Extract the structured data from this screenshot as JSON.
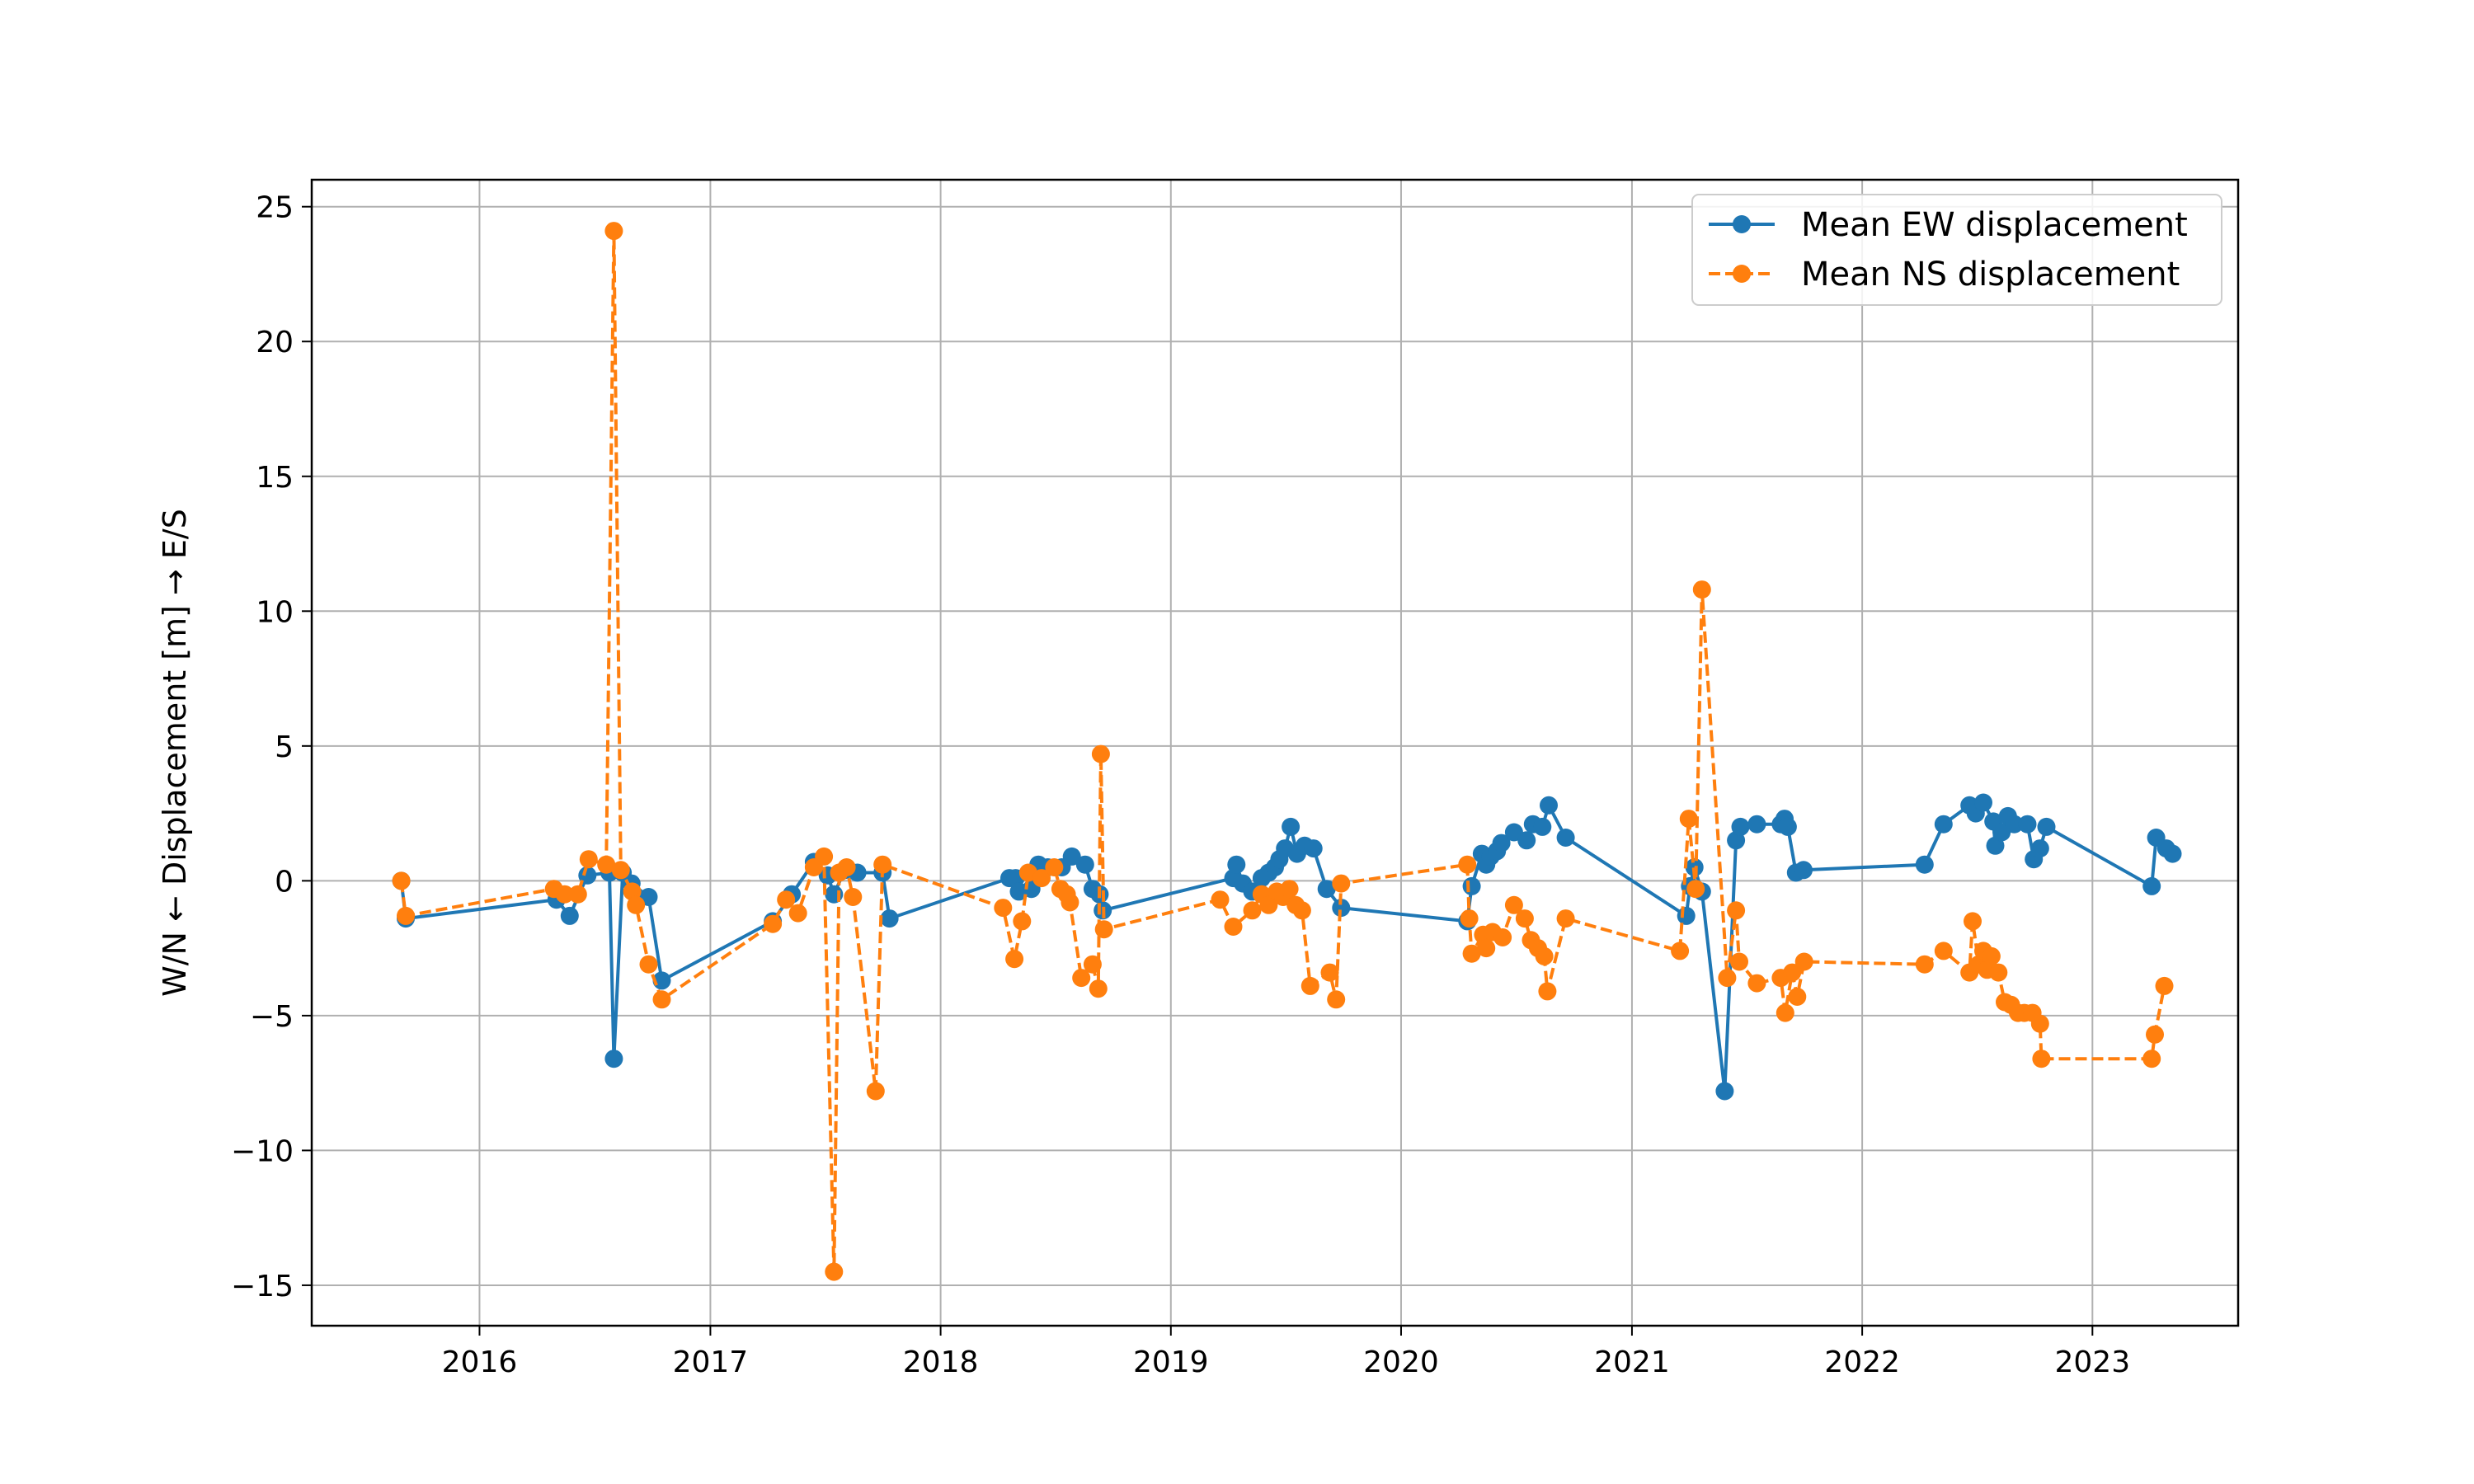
{
  "chart_data": {
    "type": "line",
    "title": "",
    "xlabel": "",
    "ylabel": "W/N ← Displacement [m] → E/S",
    "x_axis": "date",
    "xlim": [
      "2015-04-10",
      "2023-08-20"
    ],
    "ylim": [
      -16.5,
      26.0
    ],
    "xticks": [
      {
        "date": "2016-01-01",
        "label": "2016"
      },
      {
        "date": "2017-01-01",
        "label": "2017"
      },
      {
        "date": "2018-01-01",
        "label": "2018"
      },
      {
        "date": "2019-01-01",
        "label": "2019"
      },
      {
        "date": "2020-01-01",
        "label": "2020"
      },
      {
        "date": "2021-01-01",
        "label": "2021"
      },
      {
        "date": "2022-01-01",
        "label": "2022"
      },
      {
        "date": "2023-01-01",
        "label": "2023"
      }
    ],
    "yticks": [
      {
        "value": 25,
        "label": "25"
      },
      {
        "value": 20,
        "label": "20"
      },
      {
        "value": 15,
        "label": "15"
      },
      {
        "value": 10,
        "label": "10"
      },
      {
        "value": 5,
        "label": "5"
      },
      {
        "value": 0,
        "label": "0"
      },
      {
        "value": -5,
        "label": "−5"
      },
      {
        "value": -10,
        "label": "−10"
      },
      {
        "value": -15,
        "label": "−15"
      }
    ],
    "grid": true,
    "legend": "top-right",
    "series": [
      {
        "name": "Mean EW displacement",
        "color": "#1f77b4",
        "linestyle": "solid",
        "marker": "circle",
        "points": [
          [
            "2015-08-30",
            0.0
          ],
          [
            "2015-09-06",
            -1.4
          ],
          [
            "2016-05-02",
            -0.7
          ],
          [
            "2016-05-23",
            -1.3
          ],
          [
            "2016-06-20",
            0.2
          ],
          [
            "2016-07-25",
            0.3
          ],
          [
            "2016-08-01",
            -6.6
          ],
          [
            "2016-08-15",
            0.3
          ],
          [
            "2016-08-29",
            -0.1
          ],
          [
            "2016-09-25",
            -0.6
          ],
          [
            "2016-10-16",
            -3.7
          ],
          [
            "2017-04-10",
            -1.5
          ],
          [
            "2017-05-10",
            -0.5
          ],
          [
            "2017-06-14",
            0.7
          ],
          [
            "2017-07-06",
            0.2
          ],
          [
            "2017-07-16",
            -0.5
          ],
          [
            "2017-08-02",
            0.4
          ],
          [
            "2017-08-22",
            0.3
          ],
          [
            "2017-10-01",
            0.3
          ],
          [
            "2017-10-12",
            -1.4
          ],
          [
            "2018-04-20",
            0.1
          ],
          [
            "2018-04-30",
            0.1
          ],
          [
            "2018-05-05",
            -0.4
          ],
          [
            "2018-05-25",
            -0.3
          ],
          [
            "2018-06-05",
            0.6
          ],
          [
            "2018-06-20",
            0.5
          ],
          [
            "2018-07-12",
            0.5
          ],
          [
            "2018-07-28",
            0.9
          ],
          [
            "2018-08-18",
            0.6
          ],
          [
            "2018-08-30",
            -0.3
          ],
          [
            "2018-09-10",
            -0.5
          ],
          [
            "2018-09-15",
            -1.1
          ],
          [
            "2019-04-10",
            0.1
          ],
          [
            "2019-04-15",
            0.6
          ],
          [
            "2019-04-25",
            -0.1
          ],
          [
            "2019-05-10",
            -0.4
          ],
          [
            "2019-05-25",
            0.1
          ],
          [
            "2019-06-05",
            0.3
          ],
          [
            "2019-06-15",
            0.5
          ],
          [
            "2019-06-22",
            0.8
          ],
          [
            "2019-07-01",
            1.2
          ],
          [
            "2019-07-10",
            2.0
          ],
          [
            "2019-07-20",
            1.0
          ],
          [
            "2019-08-01",
            1.3
          ],
          [
            "2019-08-15",
            1.2
          ],
          [
            "2019-09-05",
            -0.3
          ],
          [
            "2019-09-28",
            -1.0
          ],
          [
            "2020-04-15",
            -1.5
          ],
          [
            "2020-04-22",
            -0.2
          ],
          [
            "2020-05-08",
            1.0
          ],
          [
            "2020-05-15",
            0.6
          ],
          [
            "2020-05-22",
            0.9
          ],
          [
            "2020-06-01",
            1.1
          ],
          [
            "2020-06-08",
            1.4
          ],
          [
            "2020-06-28",
            1.8
          ],
          [
            "2020-07-18",
            1.5
          ],
          [
            "2020-07-28",
            2.1
          ],
          [
            "2020-08-12",
            2.0
          ],
          [
            "2020-08-22",
            2.8
          ],
          [
            "2020-09-18",
            1.6
          ],
          [
            "2021-03-28",
            -1.3
          ],
          [
            "2021-04-03",
            -0.2
          ],
          [
            "2021-04-10",
            0.5
          ],
          [
            "2021-04-22",
            -0.4
          ],
          [
            "2021-05-28",
            -7.8
          ],
          [
            "2021-06-15",
            1.5
          ],
          [
            "2021-06-22",
            2.0
          ],
          [
            "2021-07-18",
            2.1
          ],
          [
            "2021-08-25",
            2.1
          ],
          [
            "2021-08-31",
            2.3
          ],
          [
            "2021-09-05",
            2.0
          ],
          [
            "2021-09-18",
            0.3
          ],
          [
            "2021-09-30",
            0.4
          ],
          [
            "2022-04-10",
            0.6
          ],
          [
            "2022-05-10",
            2.1
          ],
          [
            "2022-06-20",
            2.8
          ],
          [
            "2022-06-30",
            2.5
          ],
          [
            "2022-07-12",
            2.9
          ],
          [
            "2022-07-28",
            2.2
          ],
          [
            "2022-07-31",
            1.3
          ],
          [
            "2022-08-10",
            1.8
          ],
          [
            "2022-08-20",
            2.4
          ],
          [
            "2022-08-30",
            2.1
          ],
          [
            "2022-09-20",
            2.1
          ],
          [
            "2022-09-30",
            0.8
          ],
          [
            "2022-10-10",
            1.2
          ],
          [
            "2022-10-20",
            2.0
          ],
          [
            "2023-04-05",
            -0.2
          ],
          [
            "2023-04-12",
            1.6
          ],
          [
            "2023-04-28",
            1.2
          ],
          [
            "2023-05-08",
            1.0
          ]
        ]
      },
      {
        "name": "Mean NS displacement",
        "color": "#ff7f0e",
        "linestyle": "dashed",
        "marker": "circle",
        "points": [
          [
            "2015-08-30",
            0.0
          ],
          [
            "2015-09-06",
            -1.3
          ],
          [
            "2016-04-28",
            -0.3
          ],
          [
            "2016-05-15",
            -0.5
          ],
          [
            "2016-06-05",
            -0.5
          ],
          [
            "2016-06-22",
            0.8
          ],
          [
            "2016-07-20",
            0.6
          ],
          [
            "2016-08-01",
            24.1
          ],
          [
            "2016-08-12",
            0.4
          ],
          [
            "2016-08-30",
            -0.4
          ],
          [
            "2016-09-05",
            -0.9
          ],
          [
            "2016-09-25",
            -3.1
          ],
          [
            "2016-10-16",
            -4.4
          ],
          [
            "2017-04-10",
            -1.6
          ],
          [
            "2017-05-01",
            -0.7
          ],
          [
            "2017-05-20",
            -1.2
          ],
          [
            "2017-06-14",
            0.5
          ],
          [
            "2017-06-30",
            0.9
          ],
          [
            "2017-07-16",
            -14.5
          ],
          [
            "2017-07-24",
            0.3
          ],
          [
            "2017-08-05",
            0.5
          ],
          [
            "2017-08-15",
            -0.6
          ],
          [
            "2017-09-20",
            -7.8
          ],
          [
            "2017-10-01",
            0.6
          ],
          [
            "2018-04-10",
            -1.0
          ],
          [
            "2018-04-28",
            -2.9
          ],
          [
            "2018-05-10",
            -1.5
          ],
          [
            "2018-05-20",
            0.3
          ],
          [
            "2018-06-10",
            0.1
          ],
          [
            "2018-06-30",
            0.5
          ],
          [
            "2018-07-10",
            -0.3
          ],
          [
            "2018-07-20",
            -0.5
          ],
          [
            "2018-07-25",
            -0.8
          ],
          [
            "2018-08-12",
            -3.6
          ],
          [
            "2018-08-30",
            -3.1
          ],
          [
            "2018-09-08",
            -4.0
          ],
          [
            "2018-09-12",
            4.7
          ],
          [
            "2018-09-17",
            -1.8
          ],
          [
            "2019-03-20",
            -0.7
          ],
          [
            "2019-04-10",
            -1.7
          ],
          [
            "2019-05-10",
            -1.1
          ],
          [
            "2019-05-25",
            -0.5
          ],
          [
            "2019-06-05",
            -0.9
          ],
          [
            "2019-06-18",
            -0.4
          ],
          [
            "2019-06-28",
            -0.6
          ],
          [
            "2019-07-08",
            -0.3
          ],
          [
            "2019-07-18",
            -0.9
          ],
          [
            "2019-07-28",
            -1.1
          ],
          [
            "2019-08-10",
            -3.9
          ],
          [
            "2019-09-10",
            -3.4
          ],
          [
            "2019-09-20",
            -4.4
          ],
          [
            "2019-09-28",
            -0.1
          ],
          [
            "2020-04-15",
            0.6
          ],
          [
            "2020-04-18",
            -1.4
          ],
          [
            "2020-04-22",
            -2.7
          ],
          [
            "2020-05-10",
            -2.0
          ],
          [
            "2020-05-15",
            -2.5
          ],
          [
            "2020-05-25",
            -1.9
          ],
          [
            "2020-06-10",
            -2.1
          ],
          [
            "2020-06-28",
            -0.9
          ],
          [
            "2020-07-15",
            -1.4
          ],
          [
            "2020-07-25",
            -2.2
          ],
          [
            "2020-08-05",
            -2.5
          ],
          [
            "2020-08-15",
            -2.8
          ],
          [
            "2020-08-20",
            -4.1
          ],
          [
            "2020-09-18",
            -1.4
          ],
          [
            "2021-03-18",
            -2.6
          ],
          [
            "2021-04-01",
            2.3
          ],
          [
            "2021-04-12",
            -0.3
          ],
          [
            "2021-04-22",
            10.8
          ],
          [
            "2021-06-01",
            -3.6
          ],
          [
            "2021-06-15",
            -1.1
          ],
          [
            "2021-06-20",
            -3.0
          ],
          [
            "2021-07-18",
            -3.8
          ],
          [
            "2021-08-25",
            -3.6
          ],
          [
            "2021-09-01",
            -4.9
          ],
          [
            "2021-09-12",
            -3.4
          ],
          [
            "2021-09-20",
            -4.3
          ],
          [
            "2021-10-01",
            -3.0
          ],
          [
            "2022-04-10",
            -3.1
          ],
          [
            "2022-05-10",
            -2.6
          ],
          [
            "2022-06-20",
            -3.4
          ],
          [
            "2022-06-25",
            -1.5
          ],
          [
            "2022-07-05",
            -3.1
          ],
          [
            "2022-07-12",
            -2.6
          ],
          [
            "2022-07-18",
            -3.3
          ],
          [
            "2022-07-25",
            -2.8
          ],
          [
            "2022-08-05",
            -3.4
          ],
          [
            "2022-08-15",
            -4.5
          ],
          [
            "2022-08-25",
            -4.6
          ],
          [
            "2022-09-05",
            -4.9
          ],
          [
            "2022-09-15",
            -4.9
          ],
          [
            "2022-09-28",
            -4.9
          ],
          [
            "2022-10-10",
            -5.3
          ],
          [
            "2022-10-12",
            -6.6
          ],
          [
            "2023-04-05",
            -6.6
          ],
          [
            "2023-04-10",
            -5.7
          ],
          [
            "2023-04-25",
            -3.9
          ]
        ]
      }
    ]
  }
}
